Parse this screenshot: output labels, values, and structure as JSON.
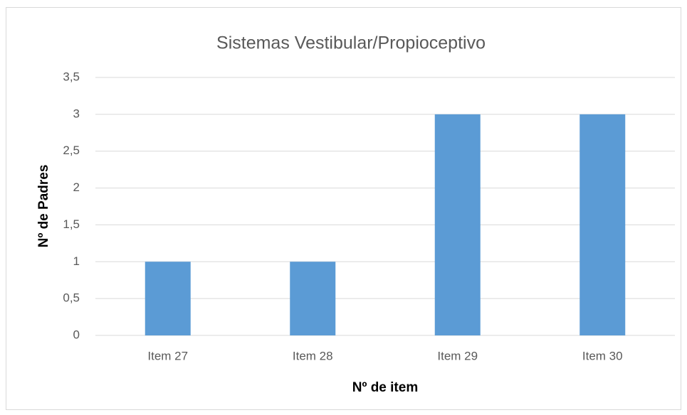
{
  "chart_data": {
    "type": "bar",
    "title": "Sistemas Vestibular/Propioceptivo",
    "x_label": "Nº de item",
    "y_label": "Nº de Padres",
    "categories": [
      "Item 27",
      "Item 28",
      "Item 29",
      "Item 30"
    ],
    "values": [
      1,
      1,
      3,
      3
    ],
    "color": "#5b9bd5",
    "ylim": [
      0,
      3.5
    ],
    "yticks": [
      0,
      {
        "value": 0.5,
        "label": "0,5"
      },
      1,
      {
        "value": 1.5,
        "label": "1,5"
      },
      2,
      {
        "value": 2.5,
        "label": "2,5"
      },
      3,
      {
        "value": 3.5,
        "label": "3,5"
      }
    ],
    "grid": true
  }
}
